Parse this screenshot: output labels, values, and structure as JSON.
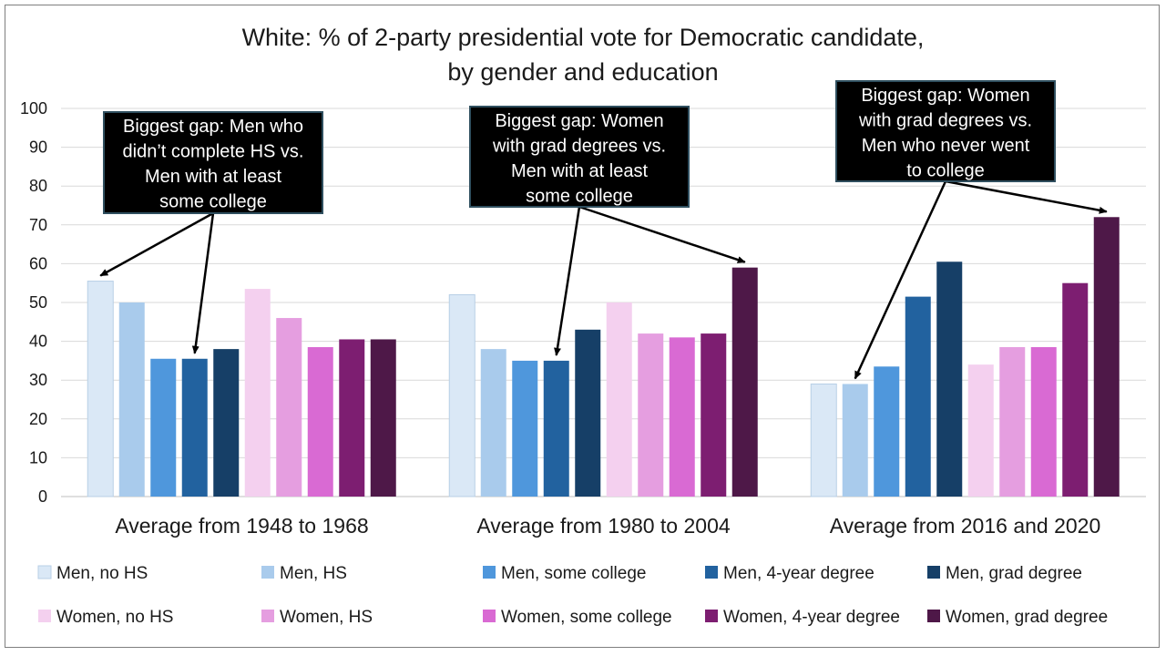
{
  "chart_data": {
    "type": "bar",
    "title_lines": [
      "White: % of 2-party presidential vote for Democratic candidate,",
      "by gender and education"
    ],
    "xlabel": "",
    "ylabel": "",
    "ylim": [
      0,
      100
    ],
    "yticks": [
      0,
      10,
      20,
      30,
      40,
      50,
      60,
      70,
      80,
      90,
      100
    ],
    "grid": true,
    "legend_position": "bottom",
    "categories": [
      "Average from 1948 to 1968",
      "Average from 1980 to 2004",
      "Average from 2016 and 2020"
    ],
    "series": [
      {
        "name": "Men, no HS",
        "color": "#dae8f6",
        "values": [
          55.5,
          52,
          29
        ]
      },
      {
        "name": "Men, HS",
        "color": "#a9cbec",
        "values": [
          50,
          38,
          29
        ]
      },
      {
        "name": "Men, some college",
        "color": "#4f97dc",
        "values": [
          35.5,
          35,
          33.5
        ]
      },
      {
        "name": "Men, 4-year degree",
        "color": "#22629f",
        "values": [
          35.5,
          35,
          51.5
        ]
      },
      {
        "name": "Men, grad degree",
        "color": "#163f67",
        "values": [
          38,
          43,
          60.5
        ]
      },
      {
        "name": "Women, no HS",
        "color": "#f4d0ef",
        "values": [
          53.5,
          50,
          34
        ]
      },
      {
        "name": "Women, HS",
        "color": "#e59ee0",
        "values": [
          46,
          42,
          38.5
        ]
      },
      {
        "name": "Women, some college",
        "color": "#d96ad3",
        "values": [
          38.5,
          41,
          38.5
        ]
      },
      {
        "name": "Women, 4-year degree",
        "color": "#7d1e71",
        "values": [
          40.5,
          42,
          55
        ]
      },
      {
        "name": "Women, grad degree",
        "color": "#4e1848",
        "values": [
          40.5,
          59,
          72
        ]
      }
    ],
    "annotations": [
      {
        "lines": [
          "Biggest gap: Men who",
          "didn’t complete HS vs.",
          "Men with at least",
          "some college"
        ],
        "targets": [
          {
            "category": 0,
            "series": 0
          },
          {
            "category": 0,
            "series": 3
          }
        ]
      },
      {
        "lines": [
          "Biggest gap: Women",
          "with grad degrees vs.",
          "Men with at least",
          "some college"
        ],
        "targets": [
          {
            "category": 1,
            "series": 3
          },
          {
            "category": 1,
            "series": 9
          }
        ]
      },
      {
        "lines": [
          "Biggest gap: Women",
          "with grad degrees vs.",
          "Men who never went",
          "to college"
        ],
        "targets": [
          {
            "category": 2,
            "series": 1
          },
          {
            "category": 2,
            "series": 9
          }
        ]
      }
    ]
  }
}
